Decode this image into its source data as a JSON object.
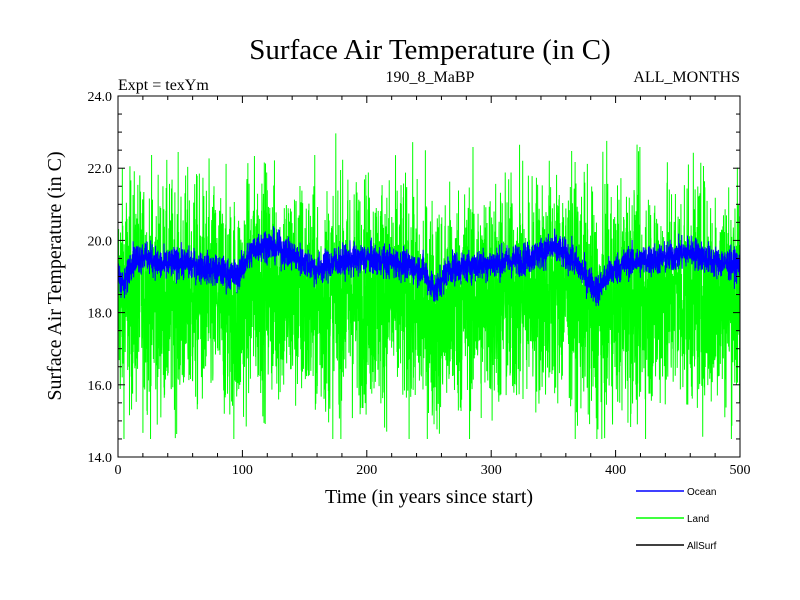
{
  "chart_data": {
    "type": "line",
    "title": "Surface Air Temperature (in C)",
    "subtitle_left": "Expt = texYm",
    "subtitle_center": "190_8_MaBP",
    "subtitle_right": "ALL_MONTHS",
    "xlabel": "Time (in years since start)",
    "ylabel": "Surface Air Temperature (in C)",
    "xlim": [
      0,
      500
    ],
    "ylim": [
      14,
      24
    ],
    "x_ticks": [
      0,
      100,
      200,
      300,
      400,
      500
    ],
    "x_tick_labels": [
      "0",
      "100",
      "200",
      "300",
      "400",
      "500"
    ],
    "y_ticks": [
      14,
      16,
      18,
      20,
      22,
      24
    ],
    "y_tick_labels": [
      "14.0",
      "16.0",
      "18.0",
      "20.0",
      "22.0",
      "24.0"
    ],
    "grid": false,
    "legend_position": "bottom-right",
    "series": [
      {
        "name": "Land",
        "color": "#00ff00",
        "mean_profile": [
          [
            0,
            18.4
          ],
          [
            10,
            18.5
          ],
          [
            20,
            18.6
          ],
          [
            40,
            18.4
          ],
          [
            60,
            18.5
          ],
          [
            80,
            18.4
          ],
          [
            95,
            18.0
          ],
          [
            110,
            18.9
          ],
          [
            130,
            18.7
          ],
          [
            160,
            18.3
          ],
          [
            200,
            18.6
          ],
          [
            230,
            18.5
          ],
          [
            255,
            17.9
          ],
          [
            270,
            18.3
          ],
          [
            300,
            18.4
          ],
          [
            330,
            18.6
          ],
          [
            355,
            18.8
          ],
          [
            375,
            18.4
          ],
          [
            385,
            17.8
          ],
          [
            400,
            18.4
          ],
          [
            430,
            18.5
          ],
          [
            460,
            18.6
          ],
          [
            480,
            18.5
          ],
          [
            500,
            18.5
          ]
        ],
        "max": 23.2,
        "min": 14.5
      },
      {
        "name": "Ocean",
        "color": "#0000ff",
        "mean_profile": [
          [
            0,
            19.1
          ],
          [
            5,
            18.7
          ],
          [
            10,
            19.4
          ],
          [
            20,
            19.6
          ],
          [
            35,
            19.3
          ],
          [
            50,
            19.4
          ],
          [
            75,
            19.2
          ],
          [
            95,
            19.0
          ],
          [
            110,
            19.8
          ],
          [
            120,
            19.9
          ],
          [
            140,
            19.6
          ],
          [
            160,
            19.2
          ],
          [
            175,
            19.4
          ],
          [
            200,
            19.5
          ],
          [
            220,
            19.4
          ],
          [
            245,
            19.2
          ],
          [
            255,
            18.6
          ],
          [
            265,
            19.2
          ],
          [
            285,
            19.3
          ],
          [
            310,
            19.4
          ],
          [
            330,
            19.5
          ],
          [
            350,
            19.8
          ],
          [
            365,
            19.5
          ],
          [
            385,
            18.6
          ],
          [
            395,
            19.1
          ],
          [
            410,
            19.4
          ],
          [
            440,
            19.5
          ],
          [
            460,
            19.7
          ],
          [
            480,
            19.4
          ],
          [
            500,
            19.3
          ]
        ],
        "max": 20.4,
        "min": 18.0
      },
      {
        "name": "AllSurf",
        "color": "#000000"
      }
    ]
  }
}
